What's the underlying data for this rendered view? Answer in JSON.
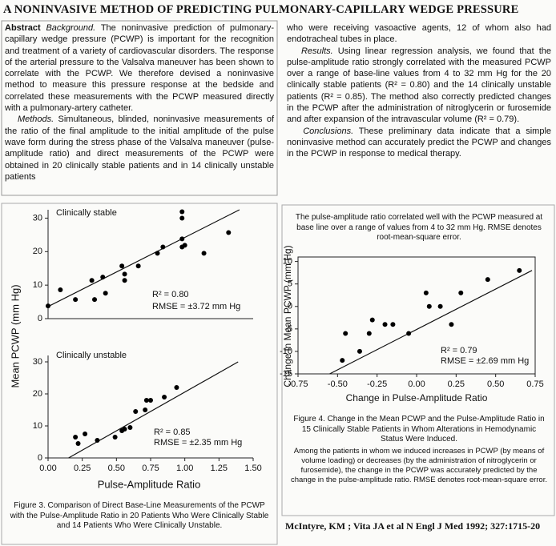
{
  "title": "A NONINVASIVE METHOD OF PREDICTING PULMONARY-CAPILLARY WEDGE PRESSURE",
  "abstract": {
    "label": "Abstract",
    "background_label": "Background.",
    "background": "The noninvasive prediction of pulmonary-capillary wedge pressure (PCWP) is important for the recognition and treatment of a variety of cardiovascular disorders. The response of the arterial pressure to the Valsalva maneuver has been shown to correlate with the PCWP. We therefore devised a noninvasive method to measure this pressure response at the bedside and correlated these measurements with the PCWP measured directly with a pulmonary-artery catheter.",
    "methods_label": "Methods.",
    "methods_left": "Simultaneous, blinded, noninvasive measurements of the ratio of the final amplitude to the initial amplitude of the pulse wave form during the stress phase of the Valsalva maneuver (pulse-amplitude ratio) and direct measurements of the PCWP were obtained in 20 clinically stable patients and in 14 clinically unstable patients",
    "methods_right": "who were receiving vasoactive agents, 12 of whom also had endotracheal tubes in place.",
    "results_label": "Results.",
    "results": "Using linear regression analysis, we found that the pulse-amplitude ratio strongly correlated with the measured PCWP over a range of base-line values from 4 to 32 mm Hg for the 20 clinically stable patients (R² = 0.80) and the 14 clinically unstable patients (R² = 0.85). The method also correctly predicted changes in the PCWP after the administration of nitroglycerin or furosemide and after expansion of the intravascular volume (R² = 0.79).",
    "conclusions_label": "Conclusions.",
    "conclusions": "These preliminary data indicate that a simple noninvasive method can accurately predict the PCWP and changes in the PCWP in response to medical therapy."
  },
  "figure3": {
    "caption": "Figure 3. Comparison of Direct Base-Line Measurements of the PCWP with the Pulse-Amplitude Ratio in 20 Patients Who Were Clinically Stable and 14 Patients Who Were Clinically Unstable."
  },
  "figure4": {
    "note_top": "The pulse-amplitude ratio correlated well with the PCWP measured at base line over a range of values from 4 to 32 mm Hg. RMSE denotes root-mean-square error.",
    "caption": "Figure 4. Change in the Mean PCWP and the Pulse-Amplitude Ratio in 15 Clinically Stable Patients in Whom Alterations in Hemodynamic Status Were Induced.",
    "note": "Among the patients in whom we induced increases in PCWP (by means of volume loading) or decreases (by the administration of nitroglycerin or furosemide), the change in the PCWP was accurately predicted by the change in the pulse-amplitude ratio. RMSE denotes root-mean-square error."
  },
  "citation": "McIntyre, KM ; Vita JA et al N Engl J Med 1992; 327:1715-20",
  "chart_data": [
    {
      "type": "scatter",
      "label": "Clinically stable",
      "r2": "R² = 0.80",
      "rmse": "RMSE = ±3.72 mm Hg",
      "ylabel": "Mean PCWP (mm Hg)",
      "color": "#000000",
      "xlim": [
        0,
        1.5
      ],
      "ylim": [
        0,
        32.5
      ],
      "yticks": [
        0,
        10,
        20,
        30
      ],
      "x": [
        0.0,
        0.09,
        0.2,
        0.32,
        0.34,
        0.4,
        0.42,
        0.54,
        0.56,
        0.56,
        0.66,
        0.8,
        0.84,
        0.98,
        0.98,
        0.98,
        0.98,
        1.0,
        1.14,
        1.32
      ],
      "y": [
        3.8,
        8.6,
        5.7,
        11.4,
        5.7,
        12.4,
        7.6,
        15.7,
        11.4,
        13.3,
        15.7,
        19.5,
        21.4,
        31.9,
        30,
        21.4,
        23.8,
        21.9,
        19.5,
        25.7
      ],
      "fit_x": [
        0,
        1.4
      ],
      "fit_y": [
        3.6,
        32.5
      ]
    },
    {
      "type": "scatter",
      "label": "Clinically unstable",
      "r2": "R² = 0.85",
      "rmse": "RMSE = ±2.35 mm Hg",
      "xlabel": "Pulse-Amplitude Ratio",
      "color": "#000000",
      "xlim": [
        0,
        1.5
      ],
      "ylim": [
        0,
        32
      ],
      "xticks": [
        {
          "value": 0,
          "label": "0.00"
        },
        {
          "value": 0.25,
          "label": "0.25"
        },
        {
          "value": 0.5,
          "label": "0.50"
        },
        {
          "value": 0.75,
          "label": "0.75"
        },
        {
          "value": 1,
          "label": "1.00"
        },
        {
          "value": 1.25,
          "label": "1.25"
        },
        {
          "value": 1.5,
          "label": "1.50"
        }
      ],
      "yticks": [
        0,
        10,
        20,
        30
      ],
      "x": [
        0.2,
        0.22,
        0.27,
        0.36,
        0.49,
        0.54,
        0.56,
        0.6,
        0.64,
        0.71,
        0.72,
        0.75,
        0.85,
        0.94
      ],
      "y": [
        6.5,
        4.5,
        7.5,
        5.5,
        6.5,
        8.5,
        9,
        9.5,
        14.5,
        15,
        18,
        18,
        19,
        22
      ],
      "fit_x": [
        0.15,
        1.39
      ],
      "fit_y": [
        0,
        30
      ]
    },
    {
      "type": "scatter",
      "r2": "R² = 0.79",
      "rmse": "RMSE = ±2.69 mm Hg",
      "xlabel": "Change in Pulse-Amplitude Ratio",
      "ylabel": "Change in Mean PCWP (mm Hg)",
      "color": "#000000",
      "xlim": [
        -0.75,
        0.75
      ],
      "ylim": [
        -15,
        11
      ],
      "xticks": [
        {
          "value": -0.75,
          "label": "-0.75"
        },
        {
          "value": -0.5,
          "label": "-0.50"
        },
        {
          "value": -0.25,
          "label": "-0.25"
        },
        {
          "value": 0,
          "label": "0.00"
        },
        {
          "value": 0.25,
          "label": "0.25"
        },
        {
          "value": 0.5,
          "label": "0.50"
        },
        {
          "value": 0.75,
          "label": "0.75"
        }
      ],
      "yticks": [
        10,
        5,
        0,
        -5,
        -10,
        -15
      ],
      "x": [
        -0.45,
        -0.47,
        -0.36,
        -0.28,
        -0.3,
        -0.15,
        -0.05,
        0.06,
        0.08,
        0.15,
        0.22,
        0.28,
        0.45,
        0.65,
        -0.2
      ],
      "y": [
        -6,
        -12,
        -10,
        -3,
        -6,
        -4,
        -6,
        3,
        0,
        0,
        -4,
        3,
        6,
        8,
        -4
      ],
      "fit_x": [
        -0.55,
        0.73
      ],
      "fit_y": [
        -15,
        8
      ]
    }
  ]
}
